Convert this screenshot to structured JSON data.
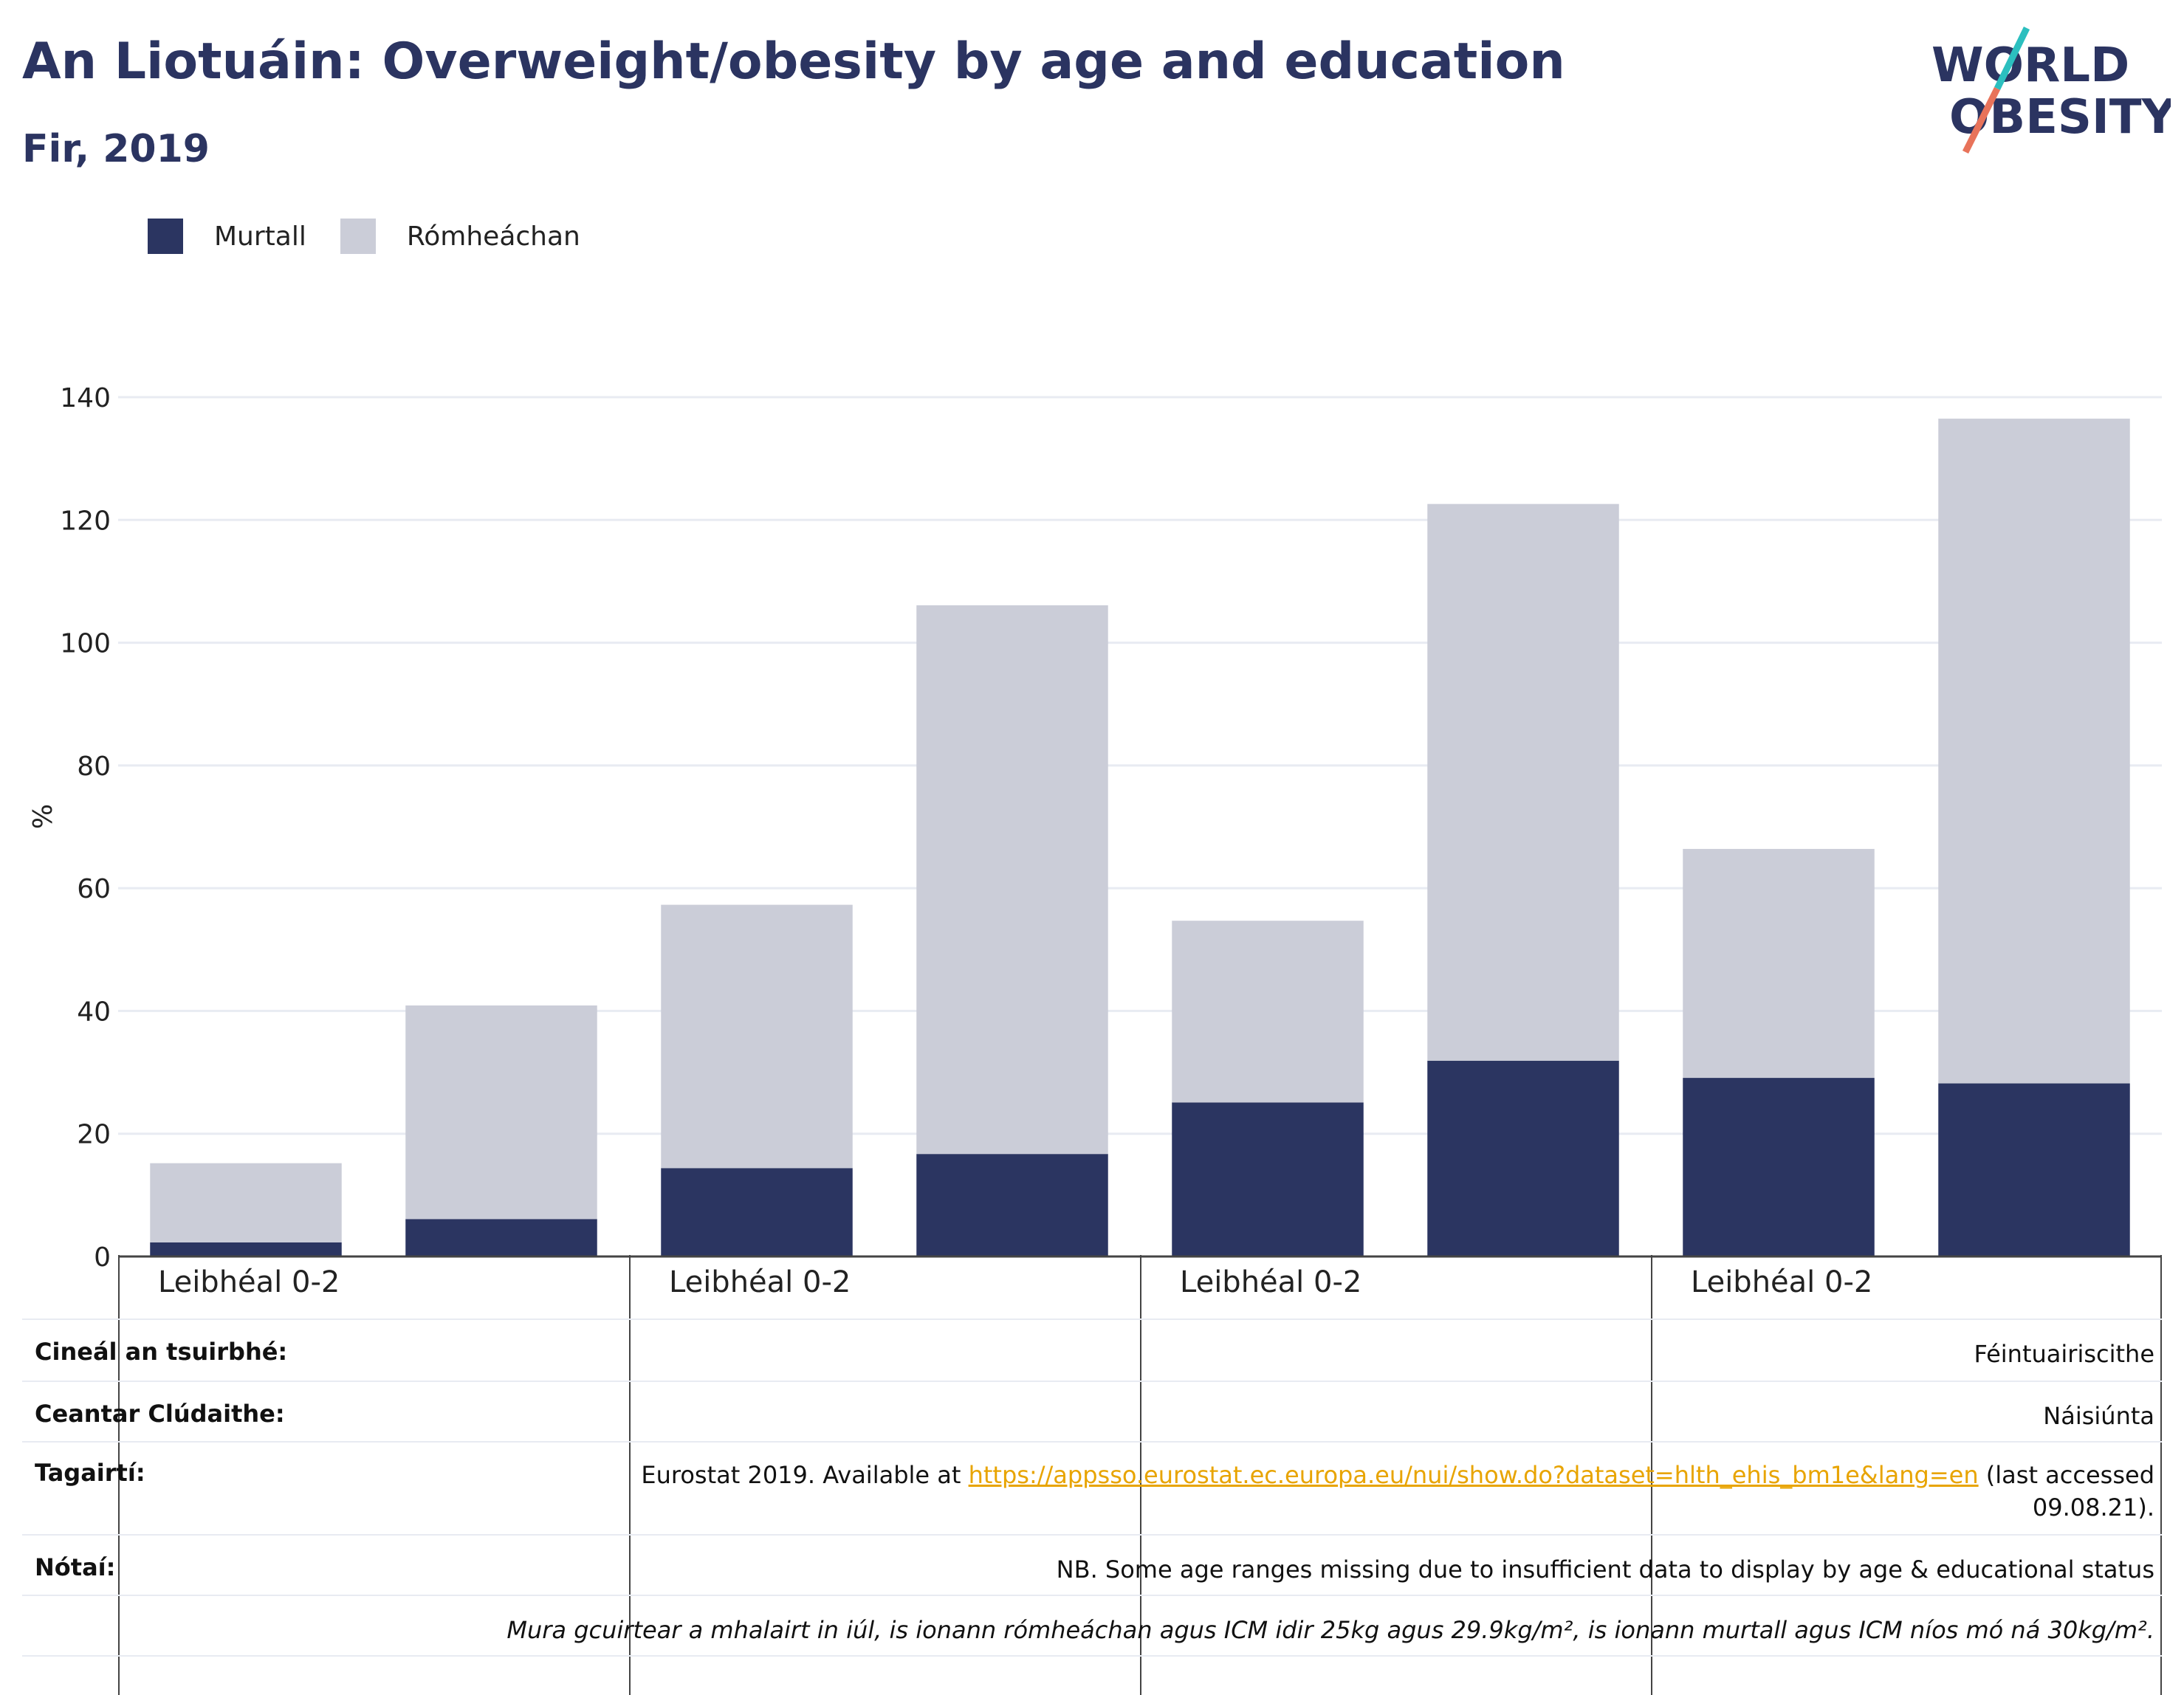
{
  "title": "An Liotuáin: Overweight/obesity by age and education",
  "subtitle": "Fir, 2019",
  "logo": {
    "line1": "WORLD",
    "line2": "OBESITY"
  },
  "colors": {
    "obese": "#2b3561",
    "overweight": "#cbcdd8",
    "title": "#2b3461",
    "link": "#e8a400"
  },
  "chart_data": {
    "type": "bar",
    "stacked": true,
    "ylabel": "%",
    "ylim": [
      0,
      140
    ],
    "yticks": [
      0,
      20,
      40,
      60,
      80,
      100,
      120,
      140
    ],
    "grid": true,
    "legend_position": "top-left",
    "group_labels": [
      "Leibhéal 0-2",
      "Leibhéal 0-2",
      "Leibhéal 0-2",
      "Leibhéal 0-2"
    ],
    "series": [
      {
        "name": "Murtall",
        "values": [
          2.3,
          6.1,
          14.4,
          16.7,
          25.1,
          31.9,
          29.1,
          28.2
        ]
      },
      {
        "name": "Rómheáchan",
        "values": [
          12.9,
          34.8,
          42.9,
          89.4,
          29.6,
          90.7,
          37.3,
          108.3
        ]
      }
    ]
  },
  "info": {
    "survey_type": {
      "label": "Cineál an tsuirbhé:",
      "value": "Féintuairiscithe"
    },
    "coverage": {
      "label": "Ceantar Clúdaithe:",
      "value": "Náisiúnta"
    },
    "references": {
      "label": "Tagairtí:",
      "prefix": "Eurostat 2019. Available at ",
      "link": "https://appsso.eurostat.ec.europa.eu/nui/show.do?dataset=hlth_ehis_bm1e&lang=en",
      "suffix": " (last accessed",
      "line2": "09.08.21)."
    },
    "notes": {
      "label": "Nótaí:",
      "value": "NB. Some age ranges missing due to insufficient data to display by age & educational status"
    },
    "definition": "Mura gcuirtear a mhalairt in iúl, is ionann rómheáchan agus ICM idir 25kg agus 29.9kg/m², is ionann murtall agus ICM níos mó ná 30kg/m²."
  }
}
